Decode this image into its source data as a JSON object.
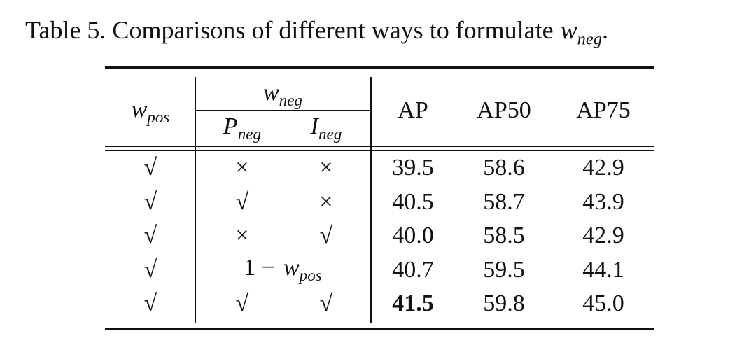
{
  "caption": {
    "prefix": "Table 5. Comparisons of different ways to formulate",
    "symbol": "w",
    "subscript": "neg",
    "suffix": "."
  },
  "table": {
    "header": {
      "w_pos": {
        "symbol": "w",
        "subscript": "pos"
      },
      "w_neg": {
        "symbol": "w",
        "subscript": "neg"
      },
      "p_neg": {
        "symbol": "P",
        "subscript": "neg"
      },
      "i_neg": {
        "symbol": "I",
        "subscript": "neg"
      },
      "ap": "AP",
      "ap50": "AP50",
      "ap75": "AP75"
    },
    "rows": [
      {
        "w_pos": "√",
        "p_neg": "×",
        "i_neg": "×",
        "ap": "39.5",
        "ap50": "58.6",
        "ap75": "42.9"
      },
      {
        "w_pos": "√",
        "p_neg": "√",
        "i_neg": "×",
        "ap": "40.5",
        "ap50": "58.7",
        "ap75": "43.9"
      },
      {
        "w_pos": "√",
        "p_neg": "×",
        "i_neg": "√",
        "ap": "40.0",
        "ap50": "58.5",
        "ap75": "42.9"
      },
      {
        "w_pos": "√",
        "w_neg": {
          "prefix": "1 −",
          "symbol": "w",
          "subscript": "pos"
        },
        "ap": "40.7",
        "ap50": "59.5",
        "ap75": "44.1"
      },
      {
        "w_pos": "√",
        "p_neg": "√",
        "i_neg": "√",
        "ap": "41.5",
        "ap50": "59.8",
        "ap75": "45.0"
      }
    ],
    "best": {
      "row": 4,
      "column": "ap"
    }
  }
}
